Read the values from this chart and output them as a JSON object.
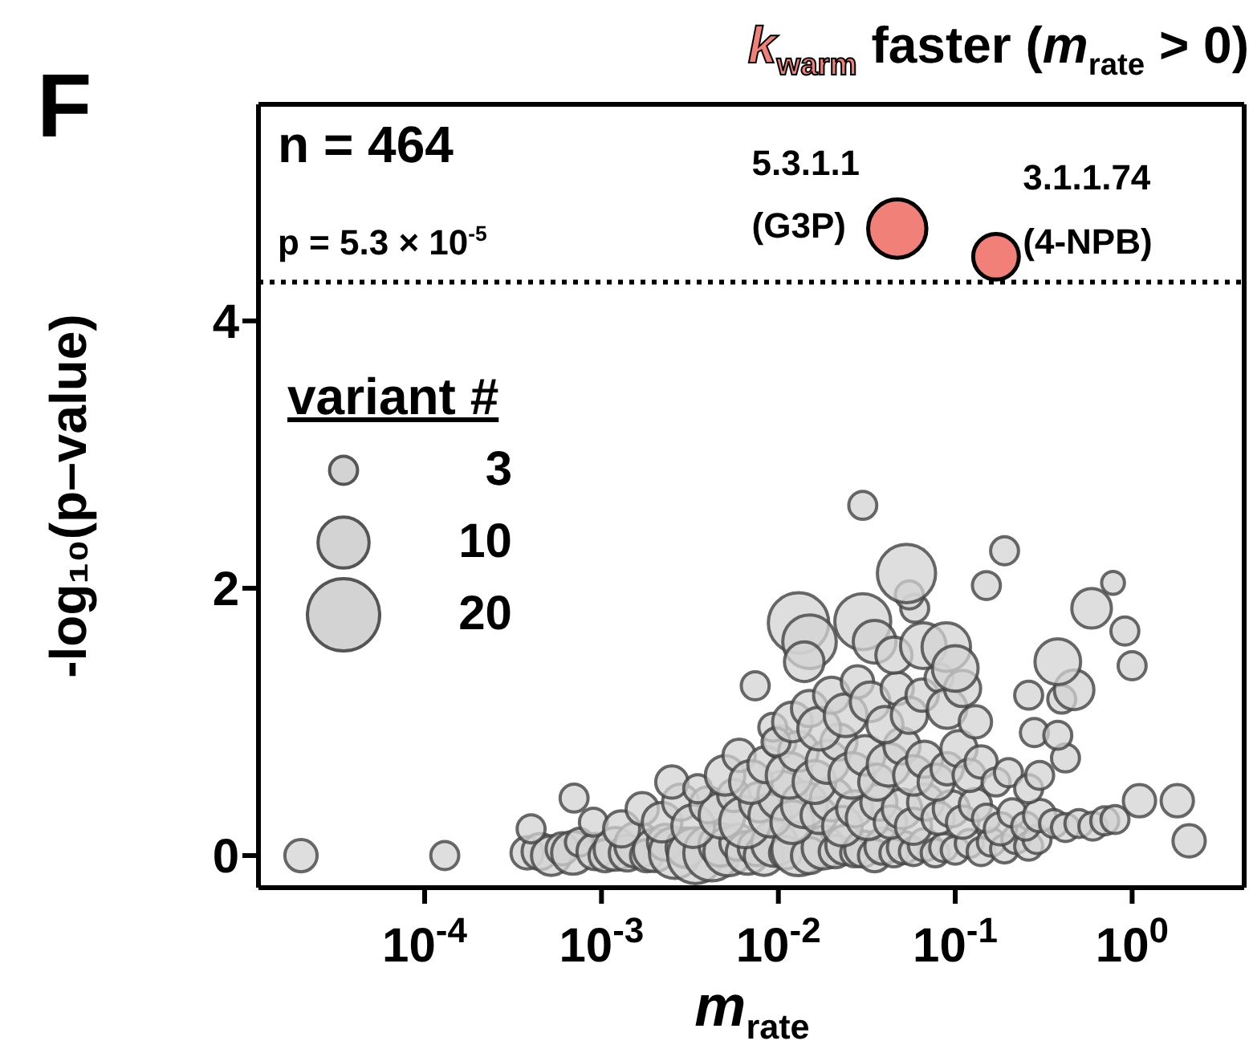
{
  "chart_data": {
    "type": "bubble",
    "title": "k$_{warm}$ faster (m$_{rate}$ > 0)",
    "xlabel": "m$_{rate}$",
    "ylabel": "-log₁₀(p–value)",
    "legend_title": "variant #",
    "size_legend": [
      3,
      10,
      20
    ],
    "log": "x",
    "xlim": [
      1.15e-05,
      4.3
    ],
    "xticks": [
      {
        "value": 0.0001,
        "label": "10$^{-4}$"
      },
      {
        "value": 0.001,
        "label": "10$^{-3}$"
      },
      {
        "value": 0.01,
        "label": "10$^{-2}$"
      },
      {
        "value": 0.1,
        "label": "10$^{-1}$"
      },
      {
        "value": 1,
        "label": "10$^{0}$"
      }
    ],
    "ylim": [
      -0.24,
      5.62
    ],
    "yticks": [
      0,
      2,
      4
    ],
    "ref_lines": [
      {
        "axis": "y",
        "value": 4.29,
        "line_style": "dotted",
        "color": "#000000"
      }
    ],
    "annotations": [
      "F",
      "n = 464",
      "p = 5.3 × 10$^{-5}$",
      {
        "text": "5.3.1.1\n(G3P)",
        "x": 0.047,
        "y": 4.69
      },
      {
        "text": "3.1.1.74\n(4-NPB)",
        "x": 0.17,
        "y": 4.48
      }
    ],
    "series": [
      {
        "color": "#d3d3d3",
        "x": [
          2e-05,
          0.00013,
          0.00038,
          0.00045,
          0.00052,
          0.0006,
          0.00069,
          0.00075,
          0.00092,
          0.00105,
          0.0012,
          0.0014,
          0.0016,
          0.0018,
          0.002,
          0.0023,
          0.0026,
          0.003,
          0.0034,
          0.0042,
          0.0047,
          0.0052,
          0.0059,
          0.0067,
          0.0075,
          0.0083,
          0.0095,
          0.011,
          0.013,
          0.015,
          0.018,
          0.021,
          0.024,
          0.027,
          0.03,
          0.035,
          0.039,
          0.045,
          0.051,
          0.058,
          0.067,
          0.077,
          0.086,
          0.1,
          0.12,
          0.14,
          0.16,
          0.19,
          0.22,
          0.26,
          0.29,
          0.0004,
          0.0007,
          0.0009,
          0.0013,
          0.0017,
          0.0022,
          0.0028,
          0.0033,
          0.004,
          0.0048,
          0.0056,
          0.0065,
          0.0078,
          0.009,
          0.0105,
          0.012,
          0.014,
          0.017,
          0.02,
          0.023,
          0.027,
          0.032,
          0.037,
          0.043,
          0.05,
          0.058,
          0.068,
          0.08,
          0.095,
          0.11,
          0.13,
          0.15,
          0.18,
          0.21,
          0.25,
          0.3,
          0.36,
          0.42,
          0.5,
          0.6,
          0.7,
          0.8,
          1.1,
          1.8,
          2.1,
          0.0025,
          0.0035,
          0.005,
          0.006,
          0.007,
          0.0085,
          0.0102,
          0.0115,
          0.013,
          0.016,
          0.019,
          0.022,
          0.026,
          0.031,
          0.036,
          0.042,
          0.05,
          0.058,
          0.067,
          0.078,
          0.09,
          0.105,
          0.12,
          0.14,
          0.17,
          0.2,
          0.26,
          0.3,
          0.42,
          0.28,
          0.38,
          0.0074,
          0.0093,
          0.0097,
          0.012,
          0.015,
          0.017,
          0.02,
          0.024,
          0.028,
          0.033,
          0.04,
          0.047,
          0.055,
          0.065,
          0.081,
          0.09,
          0.11,
          0.13,
          0.26,
          0.4,
          0.47,
          0.013,
          0.015,
          0.014,
          0.03,
          0.035,
          0.045,
          0.066,
          0.089,
          0.1,
          0.38,
          0.059,
          0.055,
          0.03,
          0.053,
          0.19,
          0.15,
          0.78,
          0.59,
          0.91,
          1.0
        ],
        "values": [
          0,
          0,
          0.02,
          0.03,
          0,
          0.05,
          0.02,
          0.1,
          0.03,
          0,
          0.05,
          0.02,
          0.08,
          0,
          0.04,
          0.1,
          0.02,
          0.06,
          0,
          0.02,
          0.08,
          0.03,
          0.1,
          0.02,
          0.06,
          0,
          0.09,
          0.02,
          0.05,
          0,
          0.06,
          0.03,
          0.08,
          0.02,
          0.05,
          0,
          0.07,
          0.02,
          0.06,
          0.03,
          0.08,
          0.02,
          0.06,
          0.04,
          0.09,
          0.03,
          0.1,
          0.05,
          0.12,
          0.07,
          0.12,
          0.2,
          0.43,
          0.25,
          0.2,
          0.35,
          0.25,
          0.4,
          0.22,
          0.38,
          0.3,
          0.45,
          0.25,
          0.4,
          0.3,
          0.45,
          0.25,
          0.38,
          0.3,
          0.42,
          0.22,
          0.35,
          0.28,
          0.4,
          0.25,
          0.35,
          0.22,
          0.4,
          0.28,
          0.35,
          0.25,
          0.38,
          0.28,
          0.2,
          0.32,
          0.22,
          0.3,
          0.24,
          0.21,
          0.24,
          0.22,
          0.26,
          0.27,
          0.41,
          0.41,
          0.11,
          0.55,
          0.5,
          0.6,
          0.75,
          0.55,
          0.68,
          0.85,
          0.6,
          0.78,
          0.55,
          0.7,
          0.85,
          0.6,
          0.75,
          0.55,
          0.68,
          0.82,
          0.6,
          0.72,
          0.55,
          0.65,
          0.8,
          0.6,
          0.7,
          0.55,
          0.62,
          0.5,
          0.6,
          0.73,
          0.92,
          0.9,
          1.27,
          0.96,
          0.85,
          1.0,
          1.1,
          0.95,
          1.2,
          1.05,
          1.3,
          1.15,
          0.98,
          1.25,
          1.05,
          1.2,
          1.33,
          1.1,
          1.25,
          1.0,
          1.2,
          1.17,
          1.24,
          1.74,
          1.6,
          1.45,
          1.75,
          1.6,
          1.5,
          1.57,
          1.56,
          1.4,
          1.45,
          1.85,
          1.95,
          2.62,
          2.11,
          2.28,
          2.02,
          2.04,
          1.85,
          1.68,
          1.42
        ],
        "sizes": [
          4,
          3,
          4,
          5,
          6,
          4,
          7,
          3,
          5,
          4,
          7,
          5,
          8,
          4,
          7,
          5,
          10,
          6,
          12,
          12,
          7,
          9,
          5,
          7,
          5,
          6,
          8,
          4,
          11,
          5,
          7,
          4,
          6,
          3,
          5,
          4,
          5,
          3,
          4,
          3,
          4,
          3,
          3,
          3,
          3,
          3,
          3,
          3,
          3,
          3,
          3,
          3,
          3,
          3,
          5,
          4,
          6,
          5,
          7,
          5,
          8,
          4,
          10,
          6,
          7,
          9,
          7,
          8,
          5,
          7,
          6,
          5,
          7,
          5,
          4,
          6,
          5,
          5,
          4,
          5,
          4,
          4,
          3,
          4,
          3,
          3,
          4,
          3,
          3,
          3,
          3,
          3,
          3,
          4,
          4,
          4,
          4,
          3,
          6,
          4,
          7,
          5,
          4,
          8,
          6,
          7,
          7,
          5,
          8,
          6,
          5,
          7,
          5,
          6,
          5,
          5,
          4,
          5,
          4,
          4,
          3,
          3,
          3,
          3,
          3,
          3,
          3,
          3,
          3,
          3,
          6,
          5,
          7,
          5,
          7,
          4,
          6,
          5,
          4,
          5,
          4,
          3,
          6,
          5,
          4,
          3,
          3,
          6,
          14,
          11,
          6,
          12,
          7,
          5,
          8,
          9,
          8,
          8,
          3,
          3,
          3,
          13,
          3,
          3,
          2,
          6,
          3,
          3
        ]
      },
      {
        "color": "#f08078",
        "x": [
          0.047,
          0.17
        ],
        "values": [
          4.69,
          4.48
        ],
        "sizes": [
          13,
          8
        ]
      }
    ]
  }
}
